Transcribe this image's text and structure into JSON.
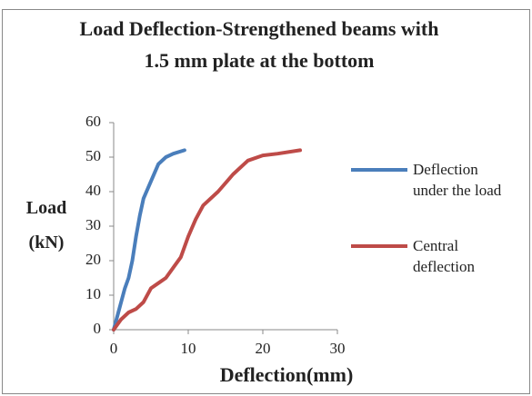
{
  "chart_data": {
    "type": "line",
    "title": "Load Deflection-Strengthened beams with 1.5 mm plate at the bottom",
    "x_label": "Deflection(mm)",
    "y_label": "Load (kN)",
    "xlim": [
      0,
      30
    ],
    "xticks": [
      0,
      10,
      20,
      30
    ],
    "ylim": [
      0,
      60
    ],
    "yticks": [
      0,
      10,
      20,
      30,
      40,
      50,
      60
    ],
    "grid": false,
    "legend": "right",
    "series": [
      {
        "name": "Deflection under the load",
        "color": "#4a7ebb",
        "x": [
          0,
          0.5,
          1,
          1.5,
          2,
          2.5,
          3,
          3.5,
          4,
          5,
          6,
          7,
          8,
          9.5
        ],
        "values": [
          0,
          4,
          8,
          12,
          15,
          20,
          27,
          33,
          38,
          43,
          48,
          50,
          51,
          52
        ]
      },
      {
        "name": "Central deflection",
        "color": "#be4b48",
        "x": [
          0,
          1,
          2,
          3,
          4,
          5,
          6,
          7,
          8,
          9,
          10,
          11,
          12,
          14,
          16,
          18,
          20,
          22,
          25
        ],
        "values": [
          0,
          3,
          5,
          6,
          8,
          12,
          13.5,
          15,
          18,
          21,
          27,
          32,
          36,
          40,
          45,
          49,
          50.5,
          51,
          52
        ]
      }
    ]
  }
}
